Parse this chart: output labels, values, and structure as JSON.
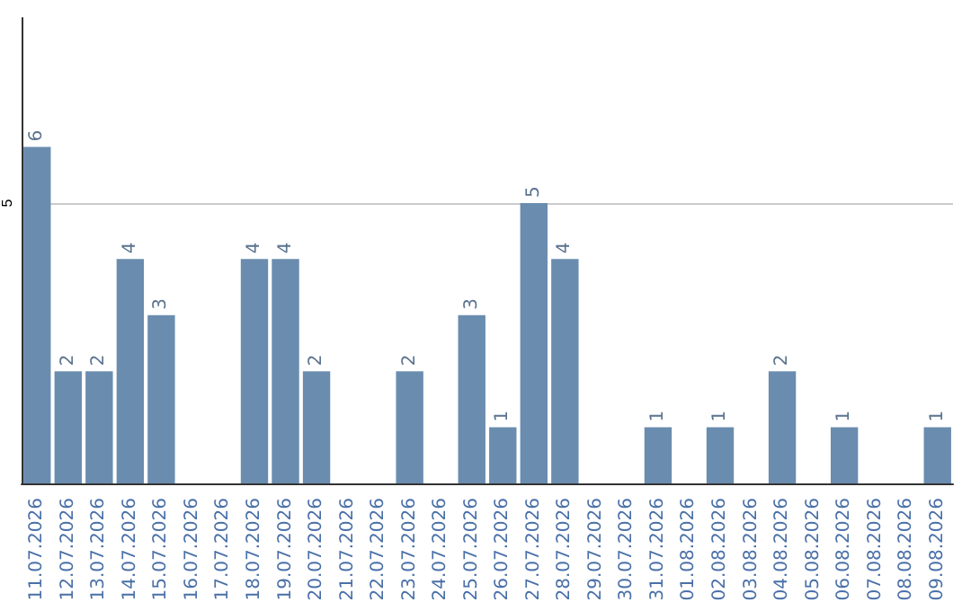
{
  "chart_data": {
    "type": "bar",
    "categories": [
      "11.07.2026",
      "12.07.2026",
      "13.07.2026",
      "14.07.2026",
      "15.07.2026",
      "16.07.2026",
      "17.07.2026",
      "18.07.2026",
      "19.07.2026",
      "20.07.2026",
      "21.07.2026",
      "22.07.2026",
      "23.07.2026",
      "24.07.2026",
      "25.07.2026",
      "26.07.2026",
      "27.07.2026",
      "28.07.2026",
      "29.07.2026",
      "30.07.2026",
      "31.07.2026",
      "01.08.2026",
      "02.08.2026",
      "03.08.2026",
      "04.08.2026",
      "05.08.2026",
      "06.08.2026",
      "07.08.2026",
      "08.08.2026",
      "09.08.2026"
    ],
    "values": [
      6,
      2,
      2,
      4,
      3,
      0,
      0,
      4,
      4,
      2,
      0,
      0,
      2,
      0,
      3,
      1,
      5,
      4,
      0,
      0,
      1,
      0,
      1,
      0,
      2,
      0,
      1,
      0,
      0,
      1
    ],
    "value_labels": [
      "6",
      "2",
      "2",
      "4",
      "3",
      null,
      null,
      "4",
      "4",
      "2",
      null,
      null,
      "2",
      null,
      "3",
      "1",
      "5",
      "4",
      null,
      null,
      "1",
      null,
      "1",
      null,
      "2",
      null,
      "1",
      null,
      null,
      "1"
    ],
    "color": "#6a8caf",
    "ylim": [
      0,
      8.3
    ],
    "yticks": [
      5
    ],
    "grid": "y"
  }
}
